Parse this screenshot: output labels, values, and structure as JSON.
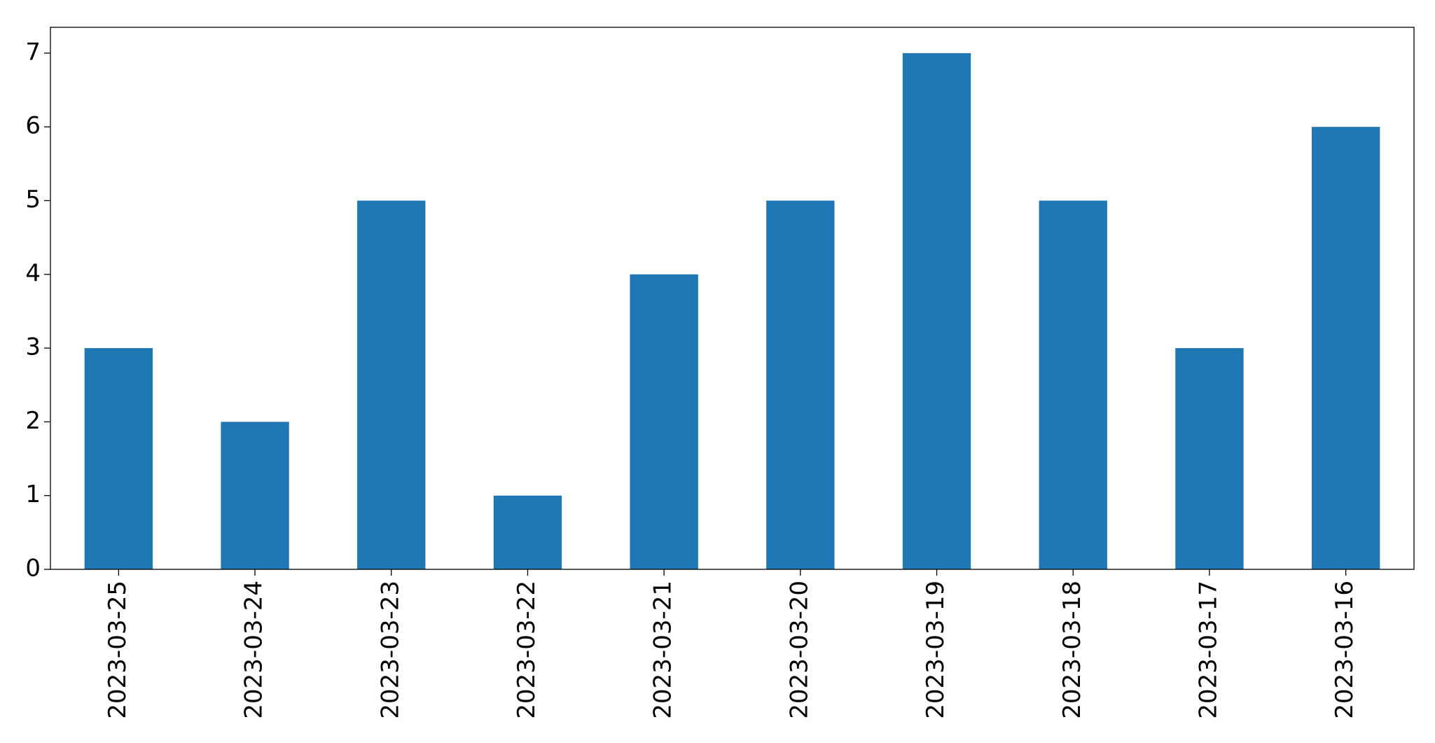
{
  "chart_data": {
    "type": "bar",
    "categories": [
      "2023-03-25",
      "2023-03-24",
      "2023-03-23",
      "2023-03-22",
      "2023-03-21",
      "2023-03-20",
      "2023-03-19",
      "2023-03-18",
      "2023-03-17",
      "2023-03-16"
    ],
    "values": [
      3,
      2,
      5,
      1,
      4,
      5,
      7,
      5,
      3,
      6
    ],
    "color": "#1f77b4",
    "ylim": [
      0,
      7.35
    ],
    "yticks": [
      0,
      1,
      2,
      3,
      4,
      5,
      6,
      7
    ],
    "grid": false
  }
}
